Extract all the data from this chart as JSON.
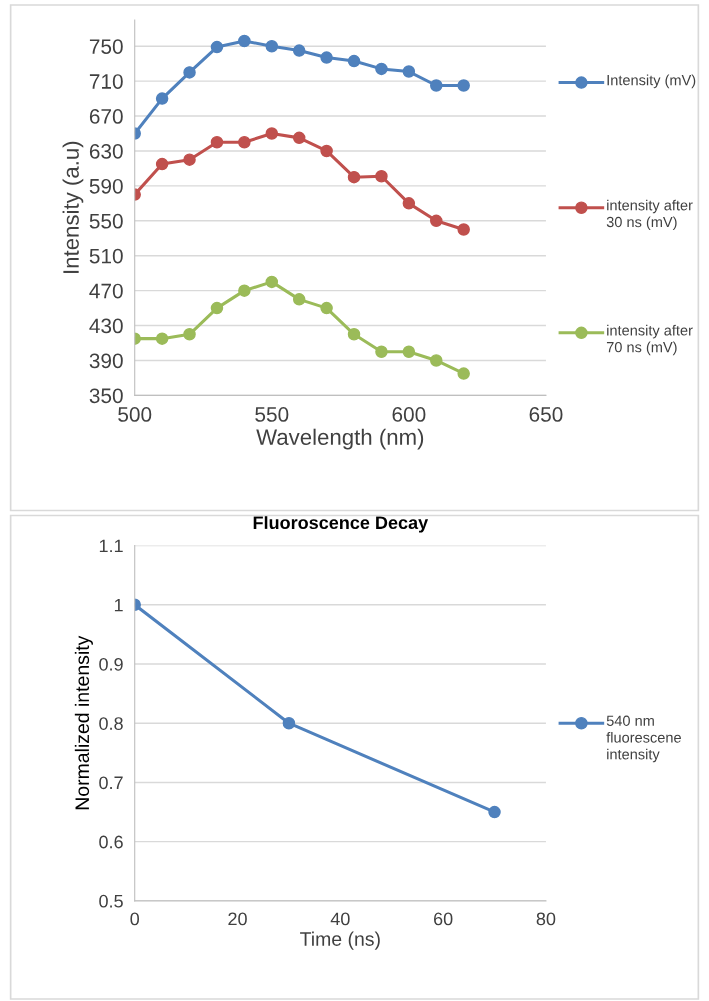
{
  "chart_data": [
    {
      "type": "line",
      "xlabel": "Wavelength (nm)",
      "ylabel": "Intensity (a.u)",
      "x": [
        500,
        510,
        520,
        530,
        540,
        550,
        560,
        570,
        580,
        590,
        600,
        610,
        620
      ],
      "series": [
        {
          "name": "Intensity (mV)",
          "color": "#4f81bd",
          "values": [
            650,
            690,
            720,
            749,
            756,
            750,
            745,
            737,
            733,
            724,
            721,
            705,
            705
          ]
        },
        {
          "name": "intensity after 30 ns (mV)",
          "color": "#c0504d",
          "values": [
            580,
            615,
            620,
            640,
            640,
            650,
            645,
            630,
            600,
            601,
            570,
            550,
            540
          ]
        },
        {
          "name": "intensity after 70 ns (mV)",
          "color": "#9bbb59",
          "values": [
            415,
            415,
            420,
            450,
            470,
            480,
            460,
            450,
            420,
            400,
            400,
            390,
            375
          ]
        }
      ],
      "xlim": [
        500,
        650
      ],
      "xticks": [
        500,
        550,
        600,
        650
      ],
      "ylim": [
        350,
        780
      ],
      "yticks": [
        350,
        390,
        430,
        470,
        510,
        550,
        590,
        630,
        670,
        710,
        750
      ],
      "grid": "y",
      "legend": "right",
      "marker": "circle",
      "line_style": "solid"
    },
    {
      "type": "line",
      "title": "Fluoroscence Decay",
      "xlabel": "Time (ns)",
      "ylabel": "Normalized intensity",
      "x": [
        0,
        30,
        70
      ],
      "series": [
        {
          "name": "540 nm fluorescene intensity",
          "color": "#4f81bd",
          "values": [
            1,
            0.8,
            0.65
          ]
        }
      ],
      "xlim": [
        0,
        80
      ],
      "xticks": [
        0,
        20,
        40,
        60,
        80
      ],
      "ylim": [
        0.5,
        1.1
      ],
      "yticks": [
        0.5,
        0.6,
        0.7,
        0.8,
        0.9,
        1,
        1.1
      ],
      "grid": "y",
      "legend": "right",
      "marker": "circle",
      "line_style": "solid"
    }
  ]
}
